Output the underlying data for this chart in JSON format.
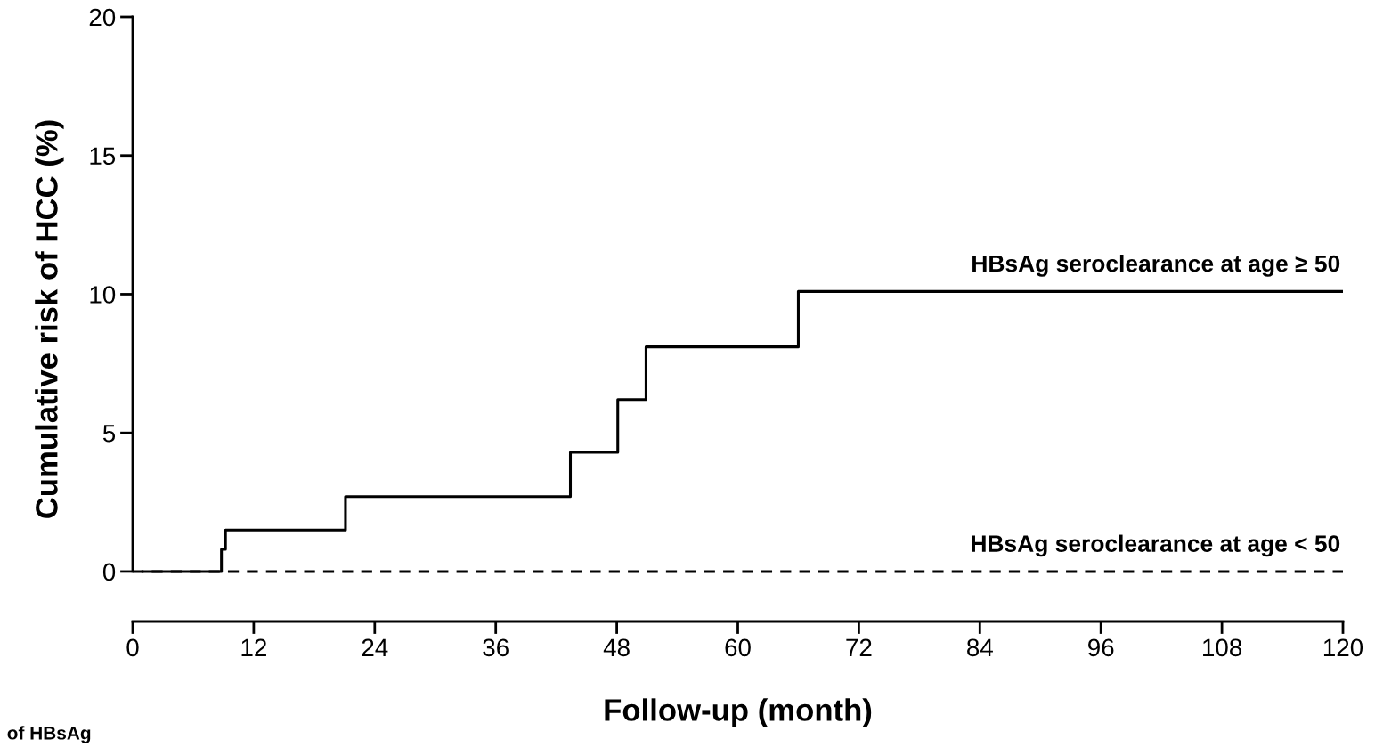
{
  "chart_data": {
    "type": "step",
    "xlabel": "Follow-up (month)",
    "ylabel": "Cumulative risk of HCC (%)",
    "series": [
      {
        "name": "HBsAg seroclearance at age ≥ 50",
        "color": "#000000",
        "line_style": "solid",
        "x": [
          1,
          8.8,
          9.2,
          21.1,
          43.4,
          48.1,
          50.9,
          66,
          120
        ],
        "values": [
          0,
          0.8,
          1.5,
          2.7,
          4.3,
          6.2,
          8.1,
          10.1,
          10.1
        ]
      },
      {
        "name": "HBsAg seroclearance at age < 50",
        "color": "#000000",
        "line_style": "dashed",
        "x": [
          0,
          120
        ],
        "values": [
          0,
          0
        ]
      }
    ],
    "xlim": [
      0,
      120
    ],
    "xticks": [
      0,
      12,
      24,
      36,
      48,
      60,
      72,
      84,
      96,
      108,
      120
    ],
    "ylim": [
      -1.8,
      20
    ],
    "yticks": [
      0,
      5,
      10,
      15,
      20
    ],
    "grid": false,
    "legend": false,
    "marker": "none",
    "annotations": [
      "of HBsAg"
    ]
  }
}
